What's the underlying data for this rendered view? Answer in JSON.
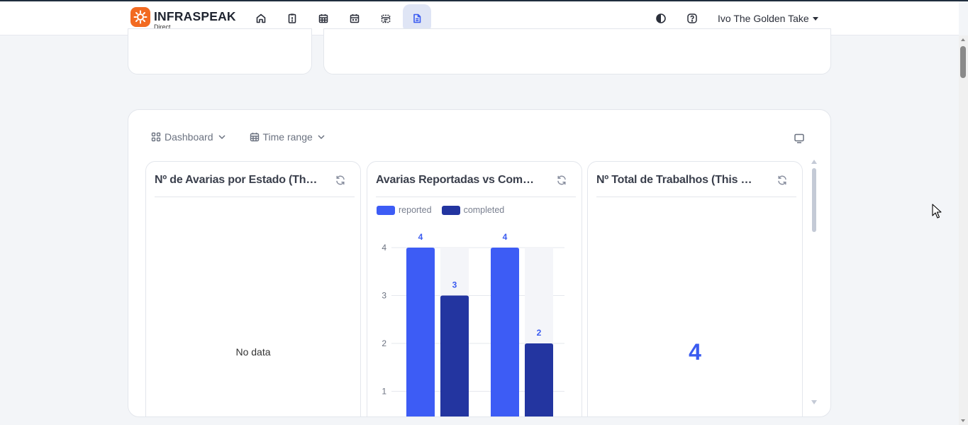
{
  "header": {
    "logo_title": "INFRASPEAK",
    "logo_subtitle": "Direct",
    "nav_icons": [
      "home-icon",
      "clipboard-icon",
      "calendar-grid-icon",
      "calendar-icon",
      "planner-icon",
      "report-icon"
    ],
    "active_nav": "report-icon",
    "user_name": "Ivo The Golden Take"
  },
  "toolbar": {
    "dashboard_label": "Dashboard",
    "time_range_label": "Time range"
  },
  "widgets": [
    {
      "title": "Nº de Avarias por Estado (This ...",
      "empty_text": "No data"
    },
    {
      "title": "Avarias Reportadas vs Comple..."
    },
    {
      "title": "Nº Total de Trabalhos (This mon...",
      "value": "4"
    }
  ],
  "chart_data": {
    "type": "bar",
    "series": [
      {
        "name": "reported",
        "values": [
          4,
          4
        ],
        "color": "#3d5cf5"
      },
      {
        "name": "completed",
        "values": [
          3,
          2
        ],
        "color": "#2335a0"
      }
    ],
    "y_ticks": [
      "4",
      "3",
      "2",
      "1"
    ],
    "ylim": [
      0,
      4
    ],
    "grid": true,
    "legend": "top-left"
  },
  "colors": {
    "accent": "#3a5bf0",
    "brand": "#f26a21",
    "reported": "#3d5cf5",
    "completed": "#2335a0"
  }
}
